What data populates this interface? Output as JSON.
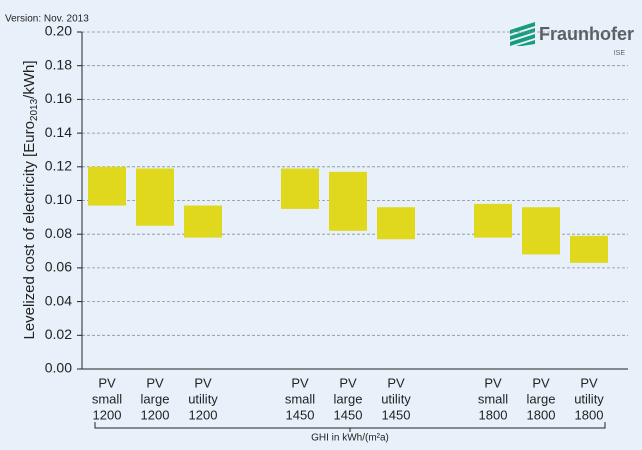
{
  "version": "Version: Nov. 2013",
  "logo": {
    "name": "Fraunhofer",
    "sub": "ISE"
  },
  "chart_data": {
    "type": "floating_bar",
    "ylabel": {
      "text": "Levelized cost of electricity [Euro",
      "sub": "2013",
      "end": "/kWh]"
    },
    "xlabel": "GHI in kWh/(m²a)",
    "categories": [
      [
        "PV",
        "small",
        "1200"
      ],
      [
        "PV",
        "large",
        "1200"
      ],
      [
        "PV",
        "utility",
        "1200"
      ],
      [
        "PV",
        "small",
        "1450"
      ],
      [
        "PV",
        "large",
        "1450"
      ],
      [
        "PV",
        "utility",
        "1450"
      ],
      [
        "PV",
        "small",
        "1800"
      ],
      [
        "PV",
        "large",
        "1800"
      ],
      [
        "PV",
        "utility",
        "1800"
      ]
    ],
    "low": [
      0.097,
      0.085,
      0.078,
      0.095,
      0.082,
      0.077,
      0.078,
      0.068,
      0.063
    ],
    "high": [
      0.12,
      0.119,
      0.097,
      0.119,
      0.117,
      0.096,
      0.098,
      0.096,
      0.079
    ],
    "color": "#e0d81c",
    "ylim": [
      0,
      0.2
    ],
    "yticks": [
      {
        "value": 0,
        "label": "0.00"
      },
      {
        "value": 0.02,
        "label": "0.02"
      },
      {
        "value": 0.04,
        "label": "0.04"
      },
      {
        "value": 0.06,
        "label": "0.06"
      },
      {
        "value": 0.08,
        "label": "0.08"
      },
      {
        "value": 0.1,
        "label": "0.10"
      },
      {
        "value": 0.12,
        "label": "0.12"
      },
      {
        "value": 0.14,
        "label": "0.14"
      },
      {
        "value": 0.16,
        "label": "0.16"
      },
      {
        "value": 0.18,
        "label": "0.18"
      },
      {
        "value": 0.2,
        "label": "0.20"
      }
    ],
    "grid": true
  }
}
